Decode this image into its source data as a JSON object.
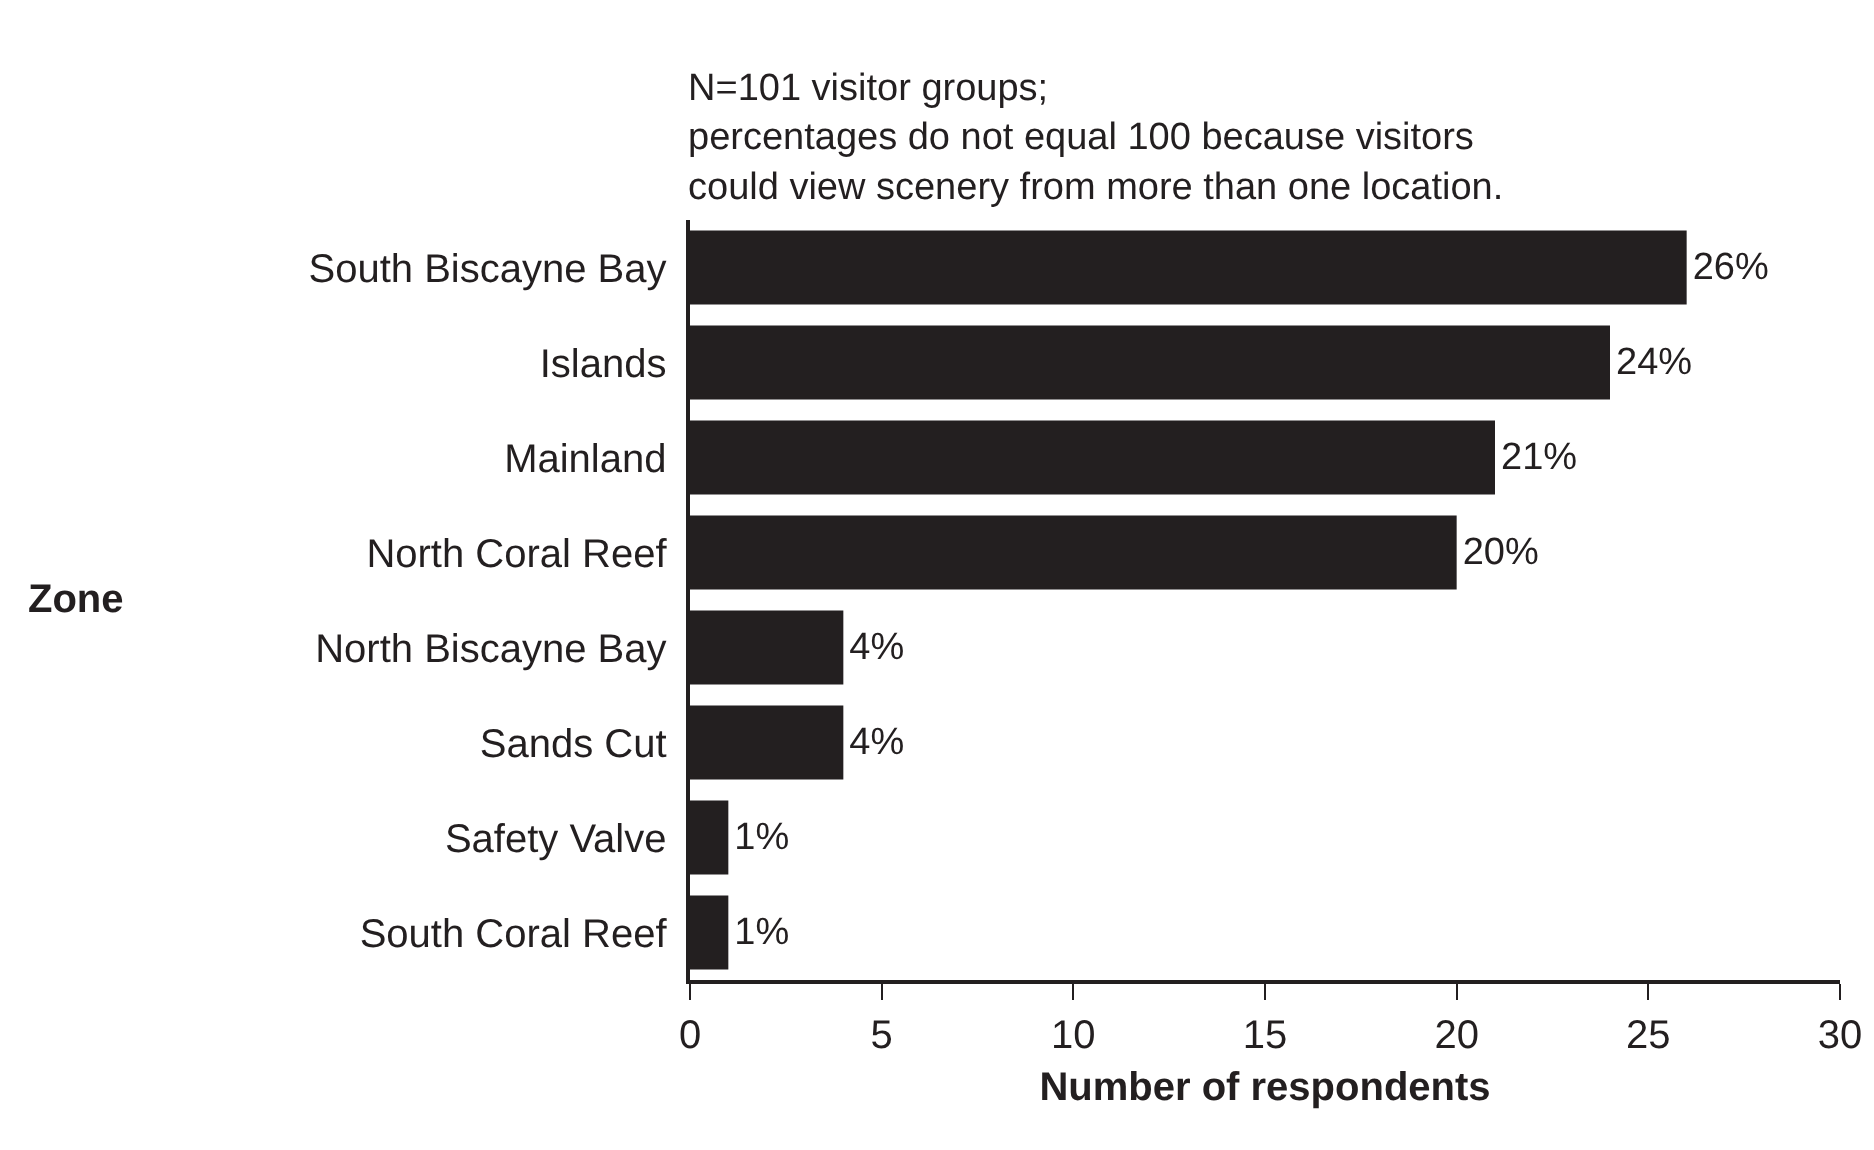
{
  "chart_data": {
    "type": "bar",
    "orientation": "horizontal",
    "categories": [
      "South Biscayne Bay",
      "Islands",
      "Mainland",
      "North Coral Reef",
      "North Biscayne Bay",
      "Sands Cut",
      "Safety Valve",
      "South Coral Reef"
    ],
    "values": [
      26,
      24,
      21,
      20,
      4,
      4,
      1,
      1
    ],
    "value_labels": [
      "26%",
      "24%",
      "21%",
      "20%",
      "4%",
      "4%",
      "1%",
      "1%"
    ],
    "color": "#231f20",
    "xlabel": "Number of respondents",
    "ylabel": "Zone",
    "xlim": [
      0,
      30
    ],
    "xticks": [
      0,
      5,
      10,
      15,
      20,
      25,
      30
    ],
    "grid": false,
    "annotations": [
      "N=101 visitor groups;\npercentages do not equal 100 because visitors\ncould view scenery from more than one location."
    ]
  }
}
